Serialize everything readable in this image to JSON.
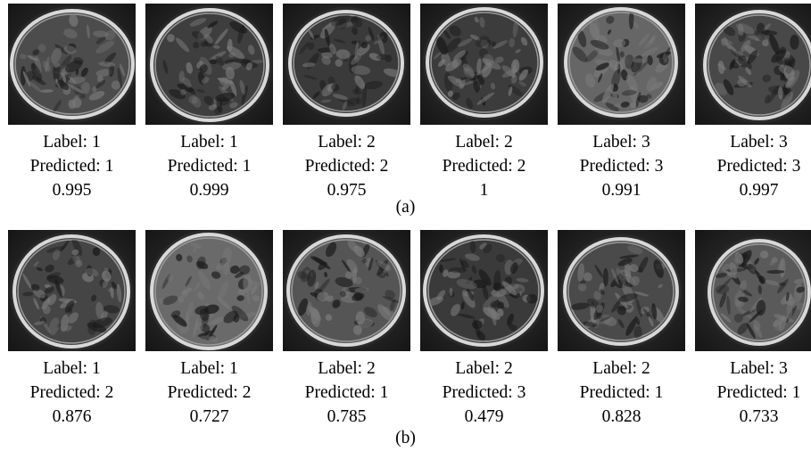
{
  "figure": {
    "panels": [
      {
        "tag": "(a)",
        "samples": [
          {
            "label": "Label: 1",
            "predicted": "Predicted: 1",
            "score": "0.995"
          },
          {
            "label": "Label: 1",
            "predicted": "Predicted: 1",
            "score": "0.999"
          },
          {
            "label": "Label: 2",
            "predicted": "Predicted: 2",
            "score": "0.975"
          },
          {
            "label": "Label: 2",
            "predicted": "Predicted: 2",
            "score": "1"
          },
          {
            "label": "Label: 3",
            "predicted": "Predicted: 3",
            "score": "0.991"
          },
          {
            "label": "Label: 3",
            "predicted": "Predicted: 3",
            "score": "0.997"
          }
        ]
      },
      {
        "tag": "(b)",
        "samples": [
          {
            "label": "Label: 1",
            "predicted": "Predicted: 2",
            "score": "0.876"
          },
          {
            "label": "Label: 1",
            "predicted": "Predicted: 2",
            "score": "0.727"
          },
          {
            "label": "Label: 2",
            "predicted": "Predicted: 1",
            "score": "0.785"
          },
          {
            "label": "Label: 2",
            "predicted": "Predicted: 3",
            "score": "0.479"
          },
          {
            "label": "Label: 2",
            "predicted": "Predicted: 1",
            "score": "0.828"
          },
          {
            "label": "Label: 3",
            "predicted": "Predicted: 1",
            "score": "0.733"
          }
        ]
      }
    ]
  }
}
